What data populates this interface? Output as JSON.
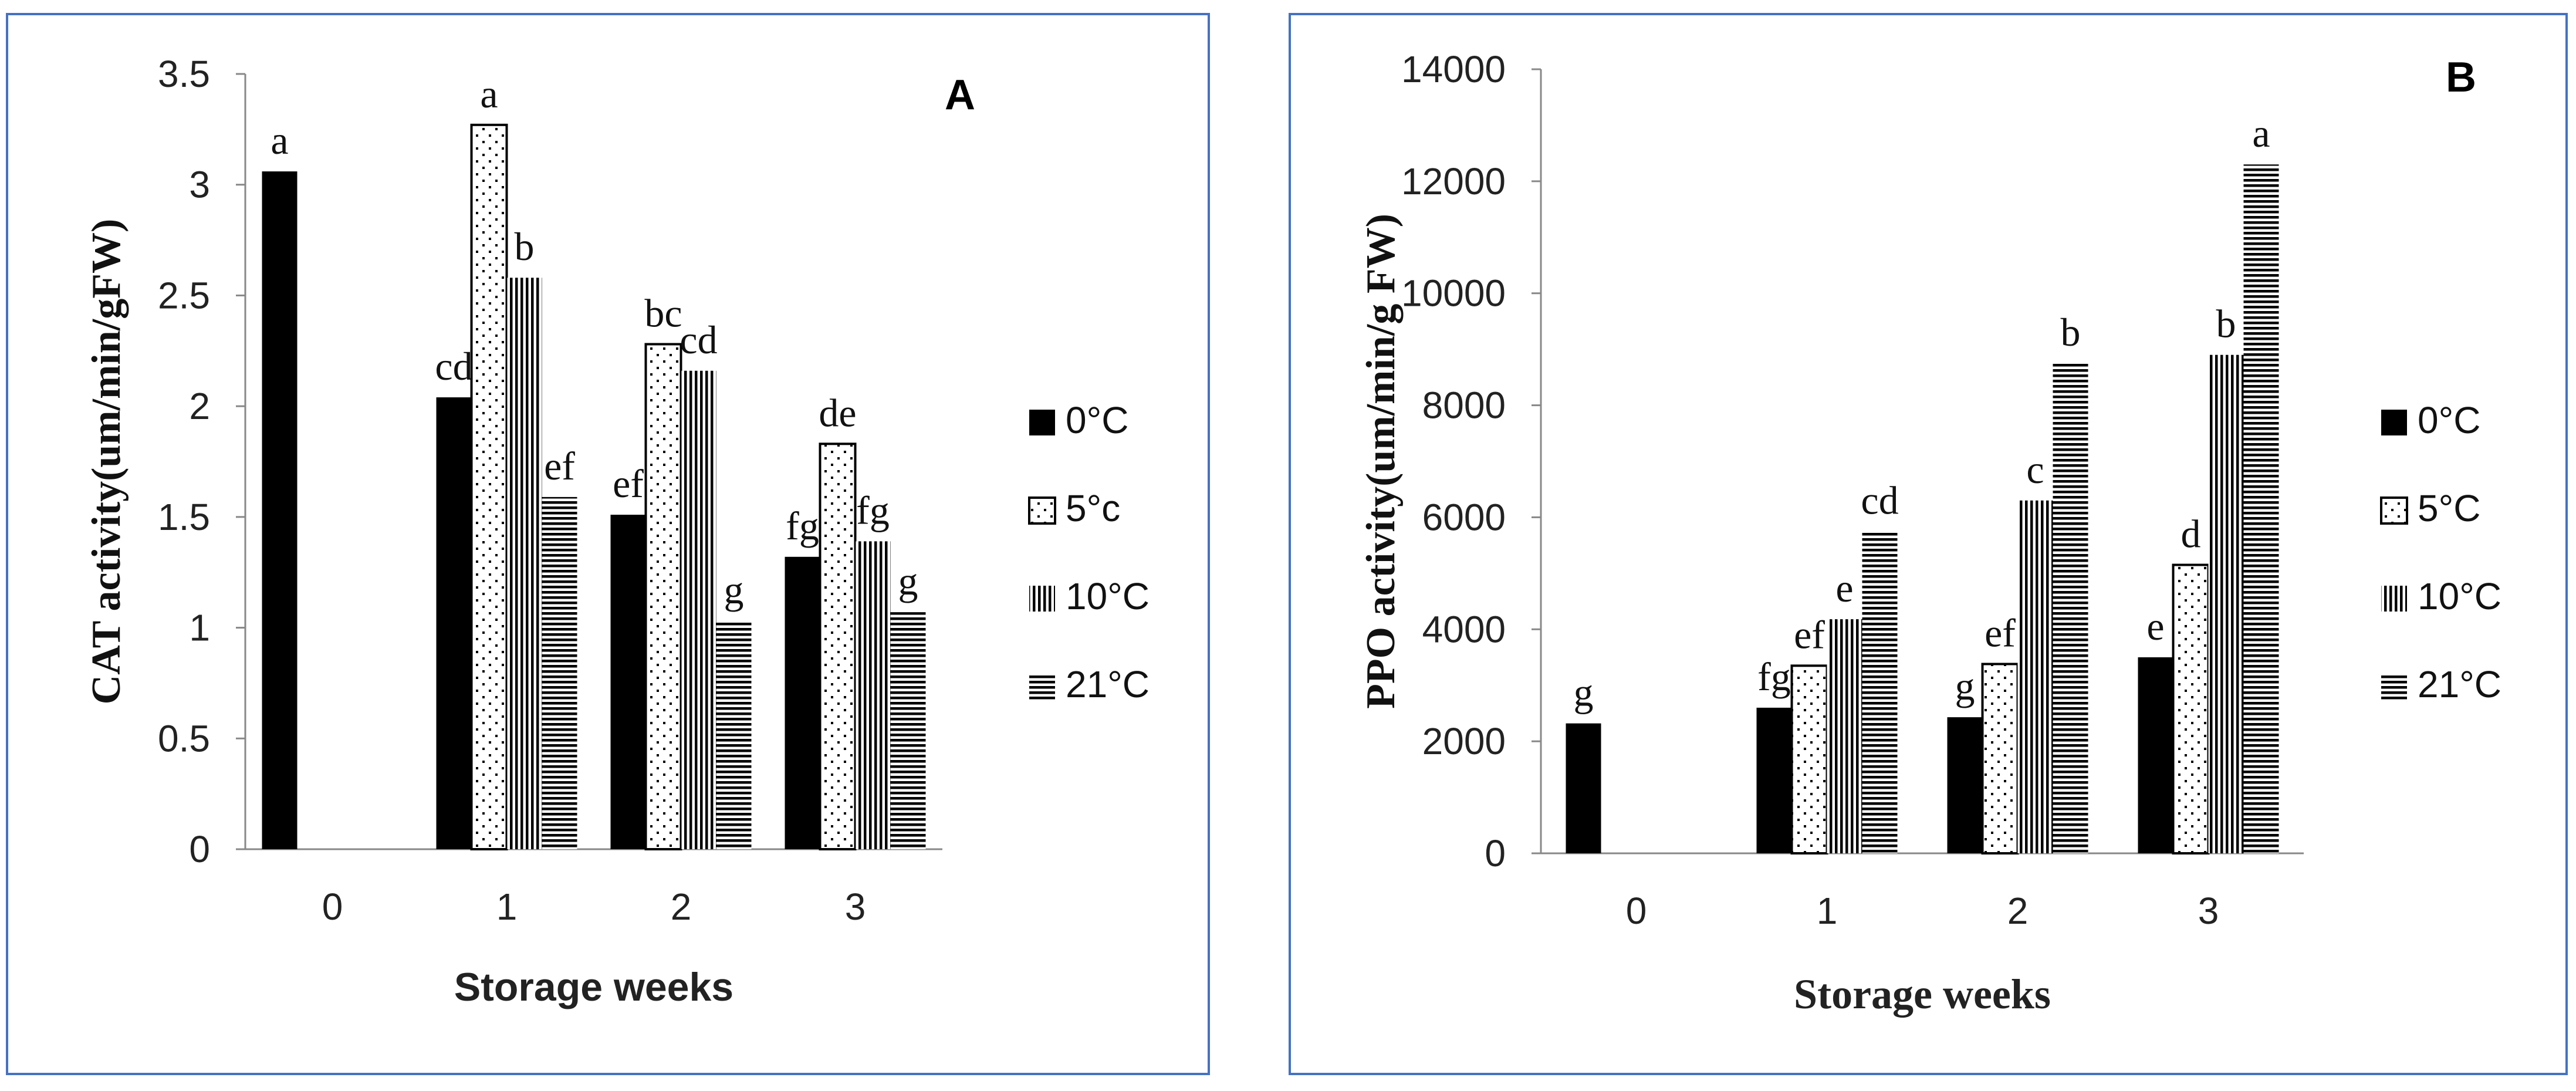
{
  "chart_data": [
    {
      "panel": "A",
      "type": "bar",
      "categories": [
        "0",
        "1",
        "2",
        "3"
      ],
      "xlabel": "Storage weeks",
      "ylabel": "CAT activity(um/min/gFW)",
      "ylim": [
        0,
        3.5
      ],
      "yticks": [
        "0",
        "0.5",
        "1",
        "1.5",
        "2",
        "2.5",
        "3",
        "3.5"
      ],
      "ytick_values": [
        0,
        0.5,
        1,
        1.5,
        2,
        2.5,
        3,
        3.5
      ],
      "legend_position": "right",
      "series": [
        {
          "name": "0°C",
          "pattern": "solid",
          "values": [
            3.06,
            2.04,
            1.51,
            1.32
          ],
          "labels": [
            "a",
            "cd",
            "ef",
            "fg"
          ]
        },
        {
          "name": "5°c",
          "pattern": "dots",
          "values": [
            0,
            3.27,
            2.28,
            1.83
          ],
          "labels": [
            "",
            "a",
            "bc",
            "de"
          ]
        },
        {
          "name": "10°C",
          "pattern": "vlines",
          "values": [
            0,
            2.58,
            2.16,
            1.39
          ],
          "labels": [
            "",
            "b",
            "cd",
            "fg"
          ]
        },
        {
          "name": "21°C",
          "pattern": "hlines",
          "values": [
            0,
            1.59,
            1.03,
            1.07
          ],
          "labels": [
            "",
            "ef",
            "g",
            "g"
          ]
        }
      ]
    },
    {
      "panel": "B",
      "type": "bar",
      "categories": [
        "0",
        "1",
        "2",
        "3"
      ],
      "xlabel": "Storage weeks",
      "ylabel": "PPO activity(um/min/g FW)",
      "ylim": [
        0,
        14000
      ],
      "yticks": [
        "0",
        "2000",
        "4000",
        "6000",
        "8000",
        "10000",
        "12000",
        "14000"
      ],
      "ytick_values": [
        0,
        2000,
        4000,
        6000,
        8000,
        10000,
        12000,
        14000
      ],
      "legend_position": "right",
      "series": [
        {
          "name": "0°C",
          "pattern": "solid",
          "values": [
            2320,
            2600,
            2430,
            3500
          ],
          "labels": [
            "g",
            "fg",
            "g",
            "e"
          ]
        },
        {
          "name": "5°C",
          "pattern": "dots",
          "values": [
            0,
            3350,
            3380,
            5150
          ],
          "labels": [
            "",
            "ef",
            "ef",
            "d"
          ]
        },
        {
          "name": "10°C",
          "pattern": "vlines",
          "values": [
            0,
            4180,
            6300,
            8900
          ],
          "labels": [
            "",
            "e",
            "c",
            "b"
          ]
        },
        {
          "name": "21°C",
          "pattern": "hlines",
          "values": [
            0,
            5750,
            8750,
            12300
          ],
          "labels": [
            "",
            "cd",
            "b",
            "a"
          ]
        }
      ]
    }
  ]
}
